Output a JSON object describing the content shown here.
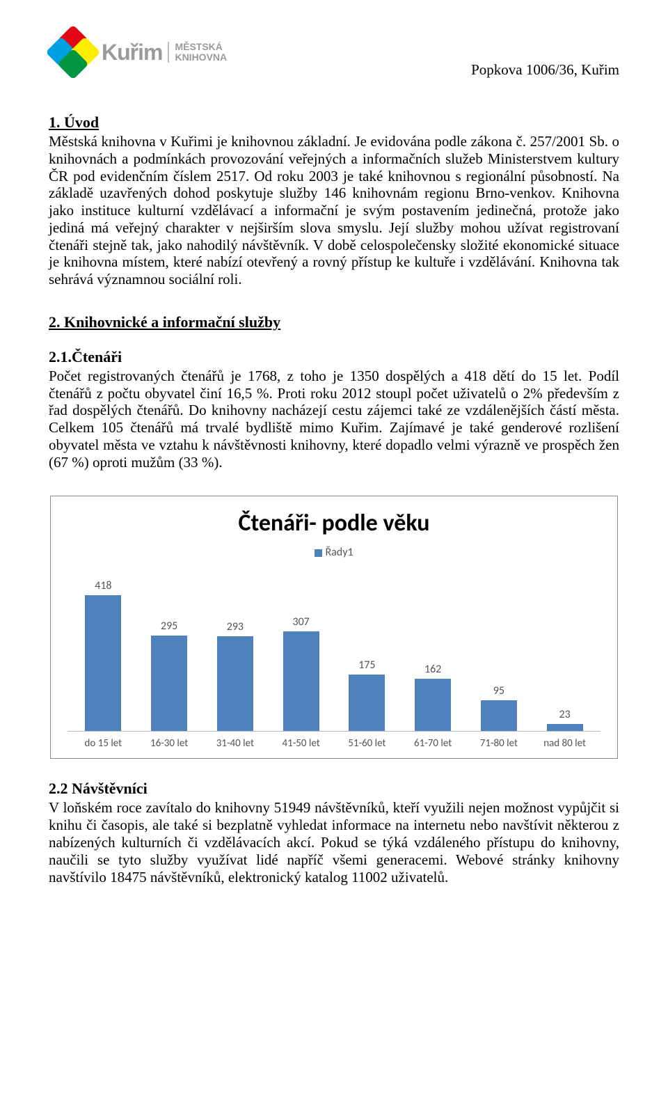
{
  "header": {
    "logo_name": "Kuřim",
    "logo_sub1": "MĚSTSKÁ",
    "logo_sub2": "KNIHOVNA",
    "address": "Popkova 1006/36, Kuřim"
  },
  "section1": {
    "heading": "1. Úvod",
    "body": "Městská knihovna v Kuřimi je knihovnou základní. Je evidována podle zákona č. 257/2001 Sb. o knihovnách a podmínkách provozování veřejných a informačních služeb Ministerstvem kultury ČR pod evidenčním číslem 2517. Od roku 2003 je také knihovnou s regionální působností. Na základě uzavřených dohod poskytuje služby 146 knihovnám regionu Brno-venkov. Knihovna jako instituce kulturní vzdělávací a informační je svým postavením jedinečná, protože jako jediná má veřejný charakter v nejširším slova smyslu. Její služby mohou užívat registrovaní čtenáři stejně tak, jako nahodilý návštěvník. V době celospolečensky složité ekonomické situace je knihovna místem, které nabízí otevřený a rovný přístup ke kultuře i vzdělávání. Knihovna tak sehrává významnou sociální roli."
  },
  "section2": {
    "heading": "2. Knihovnické a informační služby",
    "sub1_heading": "2.1.Čtenáři",
    "sub1_body": "Počet registrovaných čtenářů je 1768, z toho je 1350 dospělých a 418 dětí do 15 let. Podíl čtenářů z počtu obyvatel činí 16,5 %. Proti roku 2012 stoupl počet uživatelů o 2% především z řad dospělých čtenářů. Do knihovny nacházejí cestu zájemci také ze vzdálenějších částí města. Celkem 105 čtenářů má trvalé bydliště mimo Kuřim. Zajímavé je také genderové rozlišení obyvatel města ve vztahu k návštěvnosti knihovny, které dopadlo velmi výrazně ve prospěch žen (67 %) oproti mužům (33 %).",
    "sub2_heading": "2.2 Návštěvníci",
    "sub2_body": "V loňském roce zavítalo do knihovny 51949 návštěvníků, kteří využili nejen možnost vypůjčit si knihu či časopis, ale také si bezplatně vyhledat informace na internetu nebo navštívit některou z nabízených kulturních či vzdělávacích akcí. Pokud se týká vzdáleného přístupu do knihovny, naučili se tyto služby využívat lidé napříč všemi generacemi. Webové stránky knihovny navštívilo 18475 návštěvníků, elektronický katalog 11002 uživatelů."
  },
  "chart": {
    "title": "Čtenáři- podle věku",
    "legend_label": "Řady1",
    "bar_color": "#4f81bd",
    "label_color": "#555555",
    "max_value": 418,
    "categories": [
      "do 15 let",
      "16-30 let",
      "31-40 let",
      "41-50 let",
      "51-60 let",
      "61-70 let",
      "71-80 let",
      "nad 80 let"
    ],
    "values": [
      418,
      295,
      293,
      307,
      175,
      162,
      95,
      23
    ]
  }
}
